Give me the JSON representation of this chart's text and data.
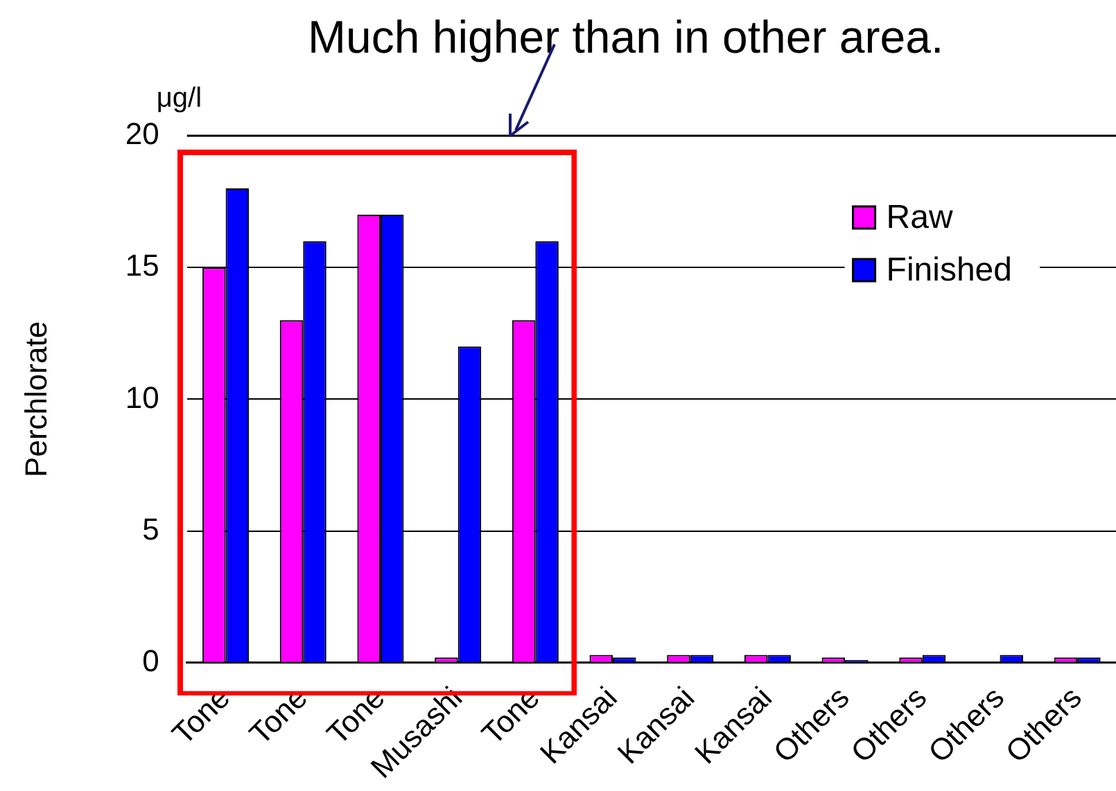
{
  "chart_data": {
    "type": "bar",
    "ylabel": "Perchlorate",
    "annotations": [
      "Much higher than in other area.",
      "μg/l"
    ],
    "categories": [
      "Tone",
      "Tone",
      "Tone",
      "Musashi",
      "Tone",
      "Kansai",
      "Kansai",
      "Kansai",
      "Others",
      "Others",
      "Others",
      "Others"
    ],
    "series": [
      {
        "name": "Raw",
        "color": "#ff00ff",
        "values": [
          15,
          13,
          17,
          0.2,
          13,
          0.3,
          0.3,
          0.3,
          0.2,
          0.2,
          0,
          0.2
        ]
      },
      {
        "name": "Finished",
        "color": "#0000ff",
        "values": [
          18,
          16,
          17,
          12,
          16,
          0.2,
          0.3,
          0.3,
          0.1,
          0.3,
          0.3,
          0.2
        ]
      }
    ],
    "ylim": [
      0,
      20
    ],
    "yticks": [
      0,
      5,
      10,
      15,
      20
    ],
    "grid": "y",
    "legend": "top right"
  }
}
